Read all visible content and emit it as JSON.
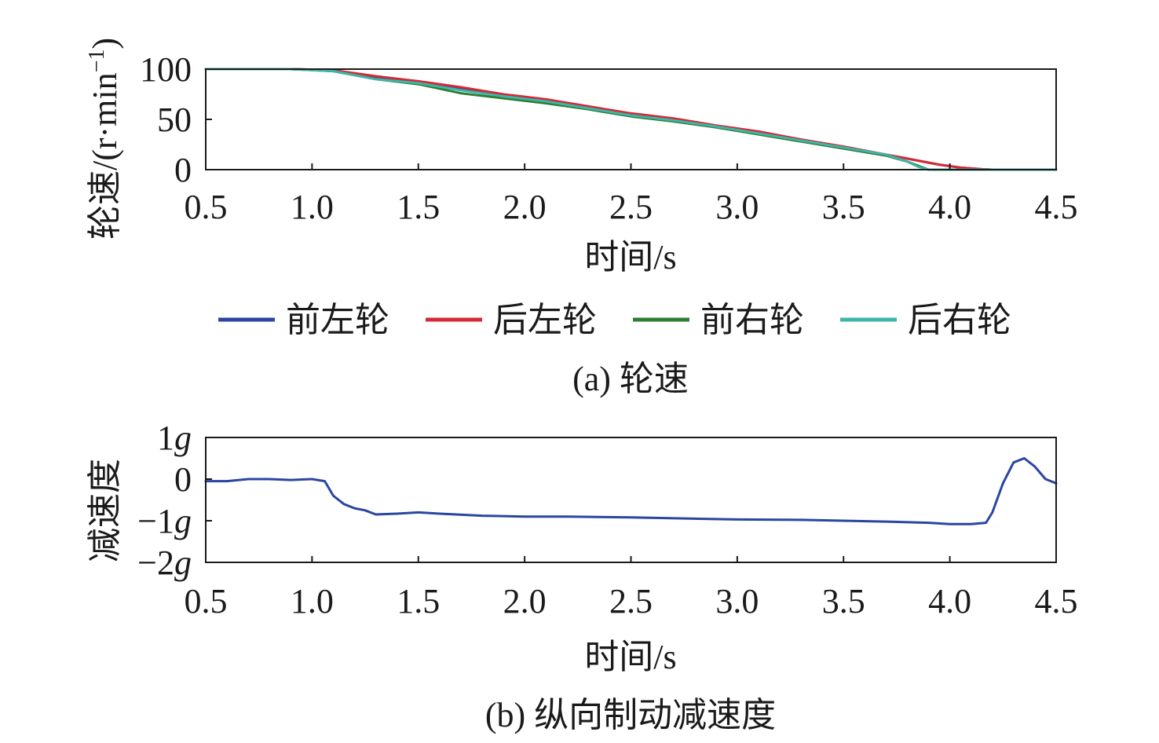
{
  "colors": {
    "front_left": "#2a46a0",
    "rear_left": "#d42a35",
    "front_right": "#2e7d32",
    "rear_right": "#3cb5aa",
    "decel": "#2a46a0",
    "axis": "#1a1a1a"
  },
  "chart_data": [
    {
      "type": "line",
      "caption": "(a) 轮速",
      "xlabel": "时间/s",
      "ylabel": "轮速/(r·min",
      "ylabel_sup": "−1",
      "ylabel_close": ")",
      "xlim": [
        0.5,
        4.5
      ],
      "ylim": [
        0,
        100
      ],
      "xticks": [
        "0.5",
        "1.0",
        "1.5",
        "2.0",
        "2.5",
        "3.0",
        "3.5",
        "4.0",
        "4.5"
      ],
      "yticks": [
        "0",
        "50",
        "100"
      ],
      "legend_position": "bottom",
      "series": [
        {
          "name": "前左轮",
          "color_key": "front_left",
          "x": [
            0.5,
            0.9,
            1.1,
            1.3,
            1.5,
            1.7,
            1.9,
            2.1,
            2.3,
            2.5,
            2.7,
            2.9,
            3.1,
            3.3,
            3.5,
            3.7,
            3.85,
            3.95,
            4.05,
            4.15,
            4.2,
            4.5
          ],
          "y": [
            100,
            100,
            99,
            92,
            87,
            80,
            74,
            69,
            62,
            55,
            50,
            43,
            37,
            30,
            22,
            15,
            9,
            5,
            2,
            0.5,
            0,
            0
          ]
        },
        {
          "name": "后左轮",
          "color_key": "rear_left",
          "x": [
            0.5,
            0.9,
            1.1,
            1.3,
            1.5,
            1.7,
            1.9,
            2.1,
            2.3,
            2.5,
            2.7,
            2.9,
            3.1,
            3.3,
            3.5,
            3.7,
            3.85,
            3.95,
            4.05,
            4.15,
            4.2,
            4.5
          ],
          "y": [
            100,
            100,
            99,
            93,
            88,
            82,
            75,
            70,
            63,
            56,
            51,
            44,
            38,
            30,
            23,
            15,
            9,
            5,
            2,
            0.5,
            0,
            0
          ]
        },
        {
          "name": "前右轮",
          "color_key": "front_right",
          "x": [
            0.5,
            0.9,
            1.1,
            1.3,
            1.5,
            1.7,
            1.9,
            2.1,
            2.3,
            2.5,
            2.7,
            2.9,
            3.1,
            3.3,
            3.5,
            3.7,
            3.8,
            3.9,
            4.5
          ],
          "y": [
            100,
            100,
            98,
            90,
            85,
            76,
            71,
            66,
            60,
            53,
            48,
            42,
            35,
            28,
            21,
            14,
            8,
            0,
            0
          ]
        },
        {
          "name": "后右轮",
          "color_key": "rear_right",
          "x": [
            0.5,
            0.9,
            1.1,
            1.3,
            1.5,
            1.7,
            1.9,
            2.1,
            2.3,
            2.5,
            2.7,
            2.9,
            3.1,
            3.3,
            3.5,
            3.7,
            3.8,
            3.85,
            3.9,
            4.5
          ],
          "y": [
            100,
            100,
            98,
            90,
            86,
            79,
            73,
            68,
            61,
            54,
            49,
            43,
            36,
            29,
            22,
            15,
            8,
            3,
            0,
            0
          ]
        }
      ]
    },
    {
      "type": "line",
      "caption": "(b) 纵向制动减速度",
      "xlabel": "时间/s",
      "ylabel": "减速度",
      "xlim": [
        0.5,
        4.5
      ],
      "ylim": [
        -2,
        1
      ],
      "xticks": [
        "0.5",
        "1.0",
        "1.5",
        "2.0",
        "2.5",
        "3.0",
        "3.5",
        "4.0",
        "4.5"
      ],
      "yticks": [
        {
          "value": 1,
          "num": "1",
          "unit": "g"
        },
        {
          "value": 0,
          "num": "0",
          "unit": ""
        },
        {
          "value": -1,
          "num": "−1",
          "unit": "g"
        },
        {
          "value": -2,
          "num": "−2",
          "unit": "g"
        }
      ],
      "series": [
        {
          "color_key": "decel",
          "x": [
            0.5,
            0.6,
            0.7,
            0.8,
            0.9,
            1.0,
            1.06,
            1.1,
            1.15,
            1.2,
            1.25,
            1.3,
            1.4,
            1.5,
            1.6,
            1.8,
            2.0,
            2.2,
            2.5,
            2.8,
            3.0,
            3.3,
            3.5,
            3.7,
            3.9,
            4.0,
            4.1,
            4.17,
            4.2,
            4.25,
            4.3,
            4.35,
            4.4,
            4.45,
            4.5
          ],
          "y": [
            -0.05,
            -0.05,
            0.0,
            0.0,
            -0.02,
            0.0,
            -0.05,
            -0.4,
            -0.6,
            -0.7,
            -0.75,
            -0.85,
            -0.83,
            -0.8,
            -0.83,
            -0.88,
            -0.9,
            -0.9,
            -0.92,
            -0.95,
            -0.97,
            -0.98,
            -1.0,
            -1.02,
            -1.05,
            -1.08,
            -1.08,
            -1.05,
            -0.8,
            -0.1,
            0.4,
            0.5,
            0.3,
            0.0,
            -0.1
          ]
        }
      ]
    }
  ]
}
